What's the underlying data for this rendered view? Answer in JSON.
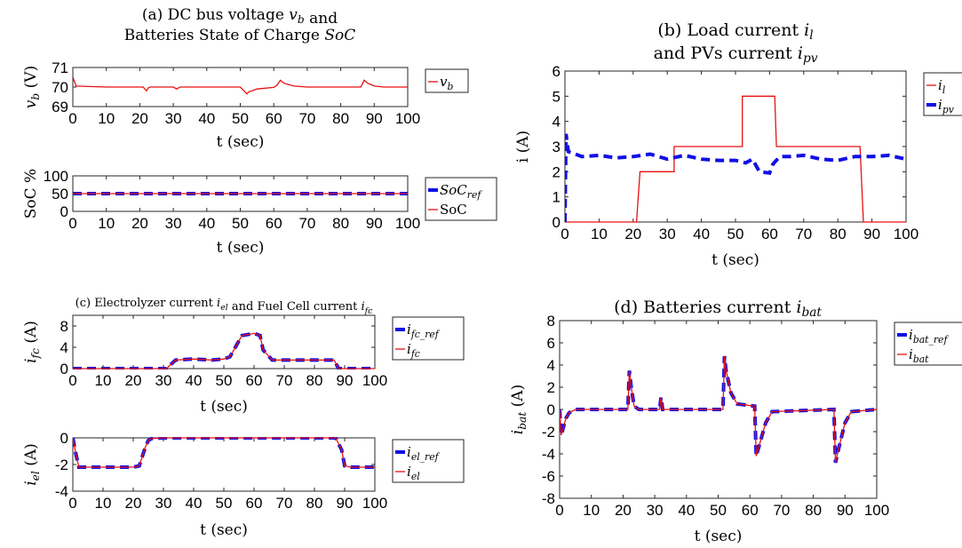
{
  "figure": {
    "colors": {
      "ref": "#1010e6",
      "meas": "#e81010",
      "axis": "#262626"
    }
  },
  "chart_data": [
    {
      "id": "vb",
      "type": "line",
      "title": "(a) DC bus voltage v_b and",
      "title2": "Batteries State of Charge SoC",
      "xlabel": "t (sec)",
      "ylabel": "v_b (V)",
      "xlim": [
        0,
        100
      ],
      "ylim": [
        69,
        71
      ],
      "xticks": [
        0,
        10,
        20,
        30,
        40,
        50,
        60,
        70,
        80,
        90,
        100
      ],
      "yticks": [
        69,
        70,
        71
      ],
      "legend": "right-outside",
      "series": [
        {
          "name": "v_b",
          "style": "meas",
          "x": [
            0,
            1,
            10,
            21,
            22,
            22.5,
            23,
            30,
            31,
            32,
            50,
            52,
            52.5,
            55,
            60,
            61,
            62,
            63,
            66,
            70,
            86,
            87,
            88,
            90,
            93,
            100
          ],
          "y": [
            70.5,
            70.05,
            70.0,
            70.0,
            69.8,
            69.95,
            70.0,
            70.0,
            69.9,
            70.0,
            70.0,
            69.65,
            69.75,
            69.9,
            69.98,
            70.1,
            70.35,
            70.2,
            70.05,
            70.0,
            70.0,
            70.35,
            70.2,
            70.05,
            70.0,
            70.0
          ]
        }
      ]
    },
    {
      "id": "soc",
      "type": "line",
      "title": "",
      "xlabel": "t (sec)",
      "ylabel": "SoC %",
      "xlim": [
        0,
        100
      ],
      "ylim": [
        0,
        100
      ],
      "xticks": [
        0,
        10,
        20,
        30,
        40,
        50,
        60,
        70,
        80,
        90,
        100
      ],
      "yticks": [
        0,
        50,
        100
      ],
      "legend": "right-outside",
      "series": [
        {
          "name": "SoC_ref",
          "style": "ref",
          "x": [
            0,
            100
          ],
          "y": [
            50,
            50
          ]
        },
        {
          "name": "SoC",
          "style": "meas",
          "x": [
            0,
            100
          ],
          "y": [
            50,
            50
          ]
        }
      ]
    },
    {
      "id": "load",
      "type": "line",
      "title": "(b) Load current i_l",
      "title2": "and PVs current i_pv",
      "xlabel": "t (sec)",
      "ylabel": "i (A)",
      "xlim": [
        0,
        100
      ],
      "ylim": [
        0,
        6
      ],
      "xticks": [
        0,
        10,
        20,
        30,
        40,
        50,
        60,
        70,
        80,
        90,
        100
      ],
      "yticks": [
        0,
        1,
        2,
        3,
        4,
        5,
        6
      ],
      "legend": "right-outside",
      "series": [
        {
          "name": "i_l",
          "style": "meas",
          "x": [
            0,
            21,
            22,
            32,
            32.01,
            52,
            52.01,
            61.5,
            62,
            86.5,
            87.5,
            100
          ],
          "y": [
            0,
            0,
            2,
            2,
            3,
            3,
            5,
            5,
            3,
            3,
            0,
            0
          ]
        },
        {
          "name": "i_pv",
          "style": "ref",
          "x": [
            0,
            0.3,
            0.6,
            1,
            2,
            5,
            10,
            15,
            20,
            25,
            30,
            35,
            40,
            45,
            50,
            53,
            55,
            57,
            60,
            61,
            63,
            66,
            70,
            75,
            80,
            85,
            90,
            95,
            100
          ],
          "y": [
            0,
            3.5,
            3.2,
            2.8,
            2.75,
            2.6,
            2.65,
            2.55,
            2.6,
            2.7,
            2.5,
            2.65,
            2.5,
            2.45,
            2.45,
            2.35,
            2.5,
            2.0,
            1.95,
            2.3,
            2.6,
            2.6,
            2.65,
            2.5,
            2.45,
            2.6,
            2.6,
            2.65,
            2.5
          ]
        }
      ]
    },
    {
      "id": "fc",
      "type": "line",
      "title": "(c) Electrolyzer current i_el and Fuel Cell current i_fc",
      "xlabel": "t (sec)",
      "ylabel": "i_fc (A)",
      "xlim": [
        0,
        100
      ],
      "ylim": [
        0,
        10
      ],
      "xticks": [
        0,
        10,
        20,
        30,
        40,
        50,
        60,
        70,
        80,
        90,
        100
      ],
      "yticks": [
        0,
        4,
        8
      ],
      "legend": "right-outside",
      "series": [
        {
          "name": "i_fc_ref",
          "style": "ref",
          "x": [
            0,
            31,
            34,
            40,
            46,
            50,
            52,
            56,
            60,
            62,
            63,
            66,
            70,
            80,
            86.5,
            88,
            100
          ],
          "y": [
            0,
            0,
            1.6,
            1.8,
            1.6,
            1.8,
            2.2,
            6.2,
            6.6,
            6.2,
            3.5,
            1.6,
            1.6,
            1.6,
            1.6,
            0,
            0
          ]
        },
        {
          "name": "i_fc",
          "style": "meas",
          "x": [
            0,
            31,
            34,
            40,
            46,
            50,
            52,
            56,
            60,
            62,
            63,
            66,
            70,
            80,
            86.5,
            88,
            100
          ],
          "y": [
            0,
            0,
            1.6,
            1.8,
            1.6,
            1.8,
            2.2,
            6.2,
            6.6,
            6.2,
            3.5,
            1.6,
            1.6,
            1.6,
            1.6,
            0,
            0
          ]
        }
      ]
    },
    {
      "id": "el",
      "type": "line",
      "title": "",
      "xlabel": "t (sec)",
      "ylabel": "i_el (A)",
      "xlim": [
        0,
        100
      ],
      "ylim": [
        -4,
        0
      ],
      "xticks": [
        0,
        10,
        20,
        30,
        40,
        50,
        60,
        70,
        80,
        90,
        100
      ],
      "yticks": [
        -4,
        -2,
        0
      ],
      "legend": "right-outside",
      "series": [
        {
          "name": "i_el_ref",
          "style": "ref",
          "x": [
            0,
            1,
            2,
            10,
            20,
            22,
            24,
            25,
            26,
            30,
            40,
            60,
            87,
            89,
            90,
            92,
            100
          ],
          "y": [
            0,
            -1.2,
            -2.2,
            -2.2,
            -2.2,
            -2.1,
            -0.7,
            -0.2,
            -0.05,
            0,
            0,
            0,
            0,
            -0.9,
            -2.1,
            -2.2,
            -2.2
          ]
        },
        {
          "name": "i_el",
          "style": "meas",
          "x": [
            0,
            1,
            2,
            10,
            20,
            22,
            24,
            25,
            26,
            30,
            40,
            60,
            87,
            89,
            90,
            92,
            100
          ],
          "y": [
            0,
            -1.2,
            -2.2,
            -2.2,
            -2.2,
            -2.1,
            -0.7,
            -0.2,
            -0.05,
            0,
            0,
            0,
            0,
            -0.9,
            -2.1,
            -2.2,
            -2.2
          ]
        }
      ]
    },
    {
      "id": "bat",
      "type": "line",
      "title": "(d) Batteries current i_bat",
      "xlabel": "t (sec)",
      "ylabel": "i_bat (A)",
      "xlim": [
        0,
        100
      ],
      "ylim": [
        -8,
        8
      ],
      "xticks": [
        0,
        10,
        20,
        30,
        40,
        50,
        60,
        70,
        80,
        90,
        100
      ],
      "yticks": [
        -8,
        -6,
        -4,
        -2,
        0,
        2,
        4,
        6,
        8
      ],
      "legend": "right-outside",
      "series": [
        {
          "name": "i_bat_ref",
          "style": "ref",
          "x": [
            0,
            0.5,
            1,
            2,
            3,
            5,
            21.5,
            22,
            22.5,
            23.5,
            25,
            31.5,
            32,
            32.5,
            51.5,
            52,
            52.5,
            54,
            56,
            61.5,
            62,
            63,
            65,
            67,
            86.5,
            87,
            88,
            90,
            92,
            100
          ],
          "y": [
            0,
            -2.3,
            -1.8,
            -0.8,
            -0.3,
            0,
            0,
            3.5,
            2.2,
            0.3,
            0,
            0,
            1.1,
            0,
            0,
            4.8,
            3.5,
            1.5,
            0.5,
            0.3,
            -4.2,
            -3.2,
            -1.2,
            -0.2,
            0,
            -4.8,
            -3.5,
            -1.2,
            -0.2,
            0
          ]
        },
        {
          "name": "i_bat",
          "style": "meas",
          "x": [
            0,
            0.5,
            1,
            2,
            3,
            5,
            21.5,
            22,
            22.5,
            23.5,
            25,
            31.5,
            32,
            32.5,
            51.5,
            52,
            52.5,
            54,
            56,
            61.5,
            62,
            63,
            65,
            67,
            86.5,
            87,
            88,
            90,
            92,
            100
          ],
          "y": [
            0,
            -2.3,
            -1.8,
            -0.8,
            -0.3,
            0,
            0,
            3.5,
            2.2,
            0.3,
            0,
            0,
            1.1,
            0,
            0,
            4.8,
            3.5,
            1.5,
            0.5,
            0.3,
            -4.2,
            -3.2,
            -1.2,
            -0.2,
            0,
            -4.8,
            -3.5,
            -1.2,
            -0.2,
            0
          ]
        }
      ]
    }
  ]
}
